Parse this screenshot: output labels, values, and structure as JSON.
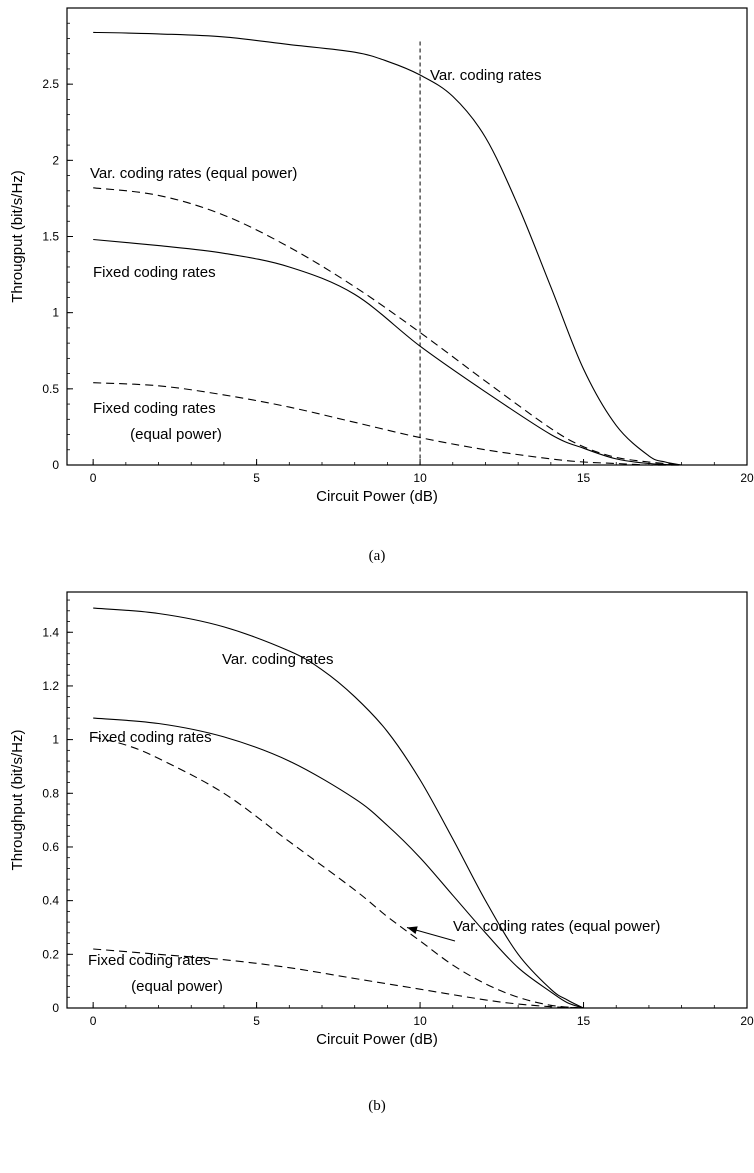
{
  "chart_data": [
    {
      "type": "line",
      "caption": "(a)",
      "xlabel": "Circuit Power (dB)",
      "ylabel": "Througput (bit/s/Hz)",
      "xlim": [
        -0.8,
        20
      ],
      "ylim": [
        0,
        3.0
      ],
      "xticks": [
        "0",
        "5",
        "10",
        "15",
        "20"
      ],
      "yticks": [
        "0",
        "0.5",
        "1",
        "1.5",
        "2",
        "2.5"
      ],
      "vline": 10,
      "series": [
        {
          "name": "Var. coding rates",
          "style": "solid",
          "x": [
            0,
            2,
            4,
            6,
            8,
            9,
            10,
            11,
            12,
            13,
            14,
            15,
            16,
            17,
            17.5,
            18
          ],
          "y": [
            2.84,
            2.83,
            2.81,
            2.76,
            2.71,
            2.65,
            2.56,
            2.42,
            2.15,
            1.7,
            1.17,
            0.63,
            0.26,
            0.06,
            0.02,
            0.0
          ]
        },
        {
          "name": "Var. coding rates (equal power)",
          "style": "dashed",
          "x": [
            0,
            2,
            4,
            6,
            8,
            10,
            12,
            14,
            15,
            16,
            17,
            18
          ],
          "y": [
            1.82,
            1.77,
            1.64,
            1.43,
            1.17,
            0.87,
            0.55,
            0.24,
            0.12,
            0.05,
            0.02,
            0.0
          ]
        },
        {
          "name": "Fixed coding rates",
          "style": "solid",
          "x": [
            0,
            2,
            4,
            6,
            8,
            10,
            12,
            14,
            15,
            16,
            17,
            18
          ],
          "y": [
            1.48,
            1.44,
            1.39,
            1.3,
            1.12,
            0.78,
            0.48,
            0.2,
            0.11,
            0.04,
            0.01,
            0.0
          ]
        },
        {
          "name": "Fixed coding rates (equal power)",
          "style": "dashed",
          "x": [
            0,
            2,
            4,
            6,
            8,
            10,
            12,
            14,
            15,
            16,
            17,
            18
          ],
          "y": [
            0.54,
            0.52,
            0.46,
            0.38,
            0.28,
            0.18,
            0.1,
            0.04,
            0.02,
            0.01,
            0.0,
            0.0
          ]
        }
      ],
      "annotations": [
        {
          "text": "Var. coding rates"
        },
        {
          "text": "Var. coding rates (equal power)"
        },
        {
          "text": "Fixed coding rates"
        },
        {
          "text": "Fixed coding rates"
        },
        {
          "text": "(equal power)"
        }
      ]
    },
    {
      "type": "line",
      "caption": "(b)",
      "xlabel": "Circuit Power (dB)",
      "ylabel": "Throughput (bit/s/Hz)",
      "xlim": [
        -0.8,
        20
      ],
      "ylim": [
        0,
        1.55
      ],
      "xticks": [
        "0",
        "5",
        "10",
        "15",
        "20"
      ],
      "yticks": [
        "0",
        "0.2",
        "0.4",
        "0.6",
        "0.8",
        "1",
        "1.2",
        "1.4"
      ],
      "series": [
        {
          "name": "Var. coding rates",
          "style": "solid",
          "x": [
            0,
            2,
            4,
            6,
            7,
            8,
            9,
            10,
            11,
            12,
            13,
            14,
            14.5,
            15
          ],
          "y": [
            1.49,
            1.47,
            1.42,
            1.33,
            1.26,
            1.16,
            1.03,
            0.85,
            0.63,
            0.4,
            0.2,
            0.07,
            0.03,
            0.0
          ]
        },
        {
          "name": "Fixed coding rates",
          "style": "solid",
          "x": [
            0,
            2,
            4,
            6,
            8,
            9,
            10,
            11,
            12,
            13,
            14,
            14.5,
            15
          ],
          "y": [
            1.08,
            1.06,
            1.01,
            0.92,
            0.78,
            0.68,
            0.56,
            0.42,
            0.28,
            0.15,
            0.06,
            0.02,
            0.0
          ]
        },
        {
          "name": "Var. coding rates (equal power)",
          "style": "dashed",
          "x": [
            0,
            1,
            2,
            4,
            6,
            8,
            9,
            10,
            11,
            12,
            13,
            14,
            15
          ],
          "y": [
            1.01,
            0.98,
            0.93,
            0.8,
            0.62,
            0.44,
            0.34,
            0.25,
            0.16,
            0.09,
            0.04,
            0.01,
            0.0
          ]
        },
        {
          "name": "Fixed coding rates (equal power)",
          "style": "dashed",
          "x": [
            0,
            2,
            4,
            6,
            8,
            10,
            12,
            13,
            14,
            15
          ],
          "y": [
            0.22,
            0.2,
            0.18,
            0.15,
            0.11,
            0.07,
            0.03,
            0.015,
            0.005,
            0.0
          ]
        }
      ],
      "annotations": [
        {
          "text": "Var. coding rates"
        },
        {
          "text": "Fixed coding rates"
        },
        {
          "text": "Var. coding rates (equal power)"
        },
        {
          "text": "Fixed coding rates"
        },
        {
          "text": "(equal power)"
        }
      ],
      "arrow": {
        "label": "Var. coding rates (equal power)",
        "points_to": [
          9.6,
          0.3
        ]
      }
    }
  ]
}
